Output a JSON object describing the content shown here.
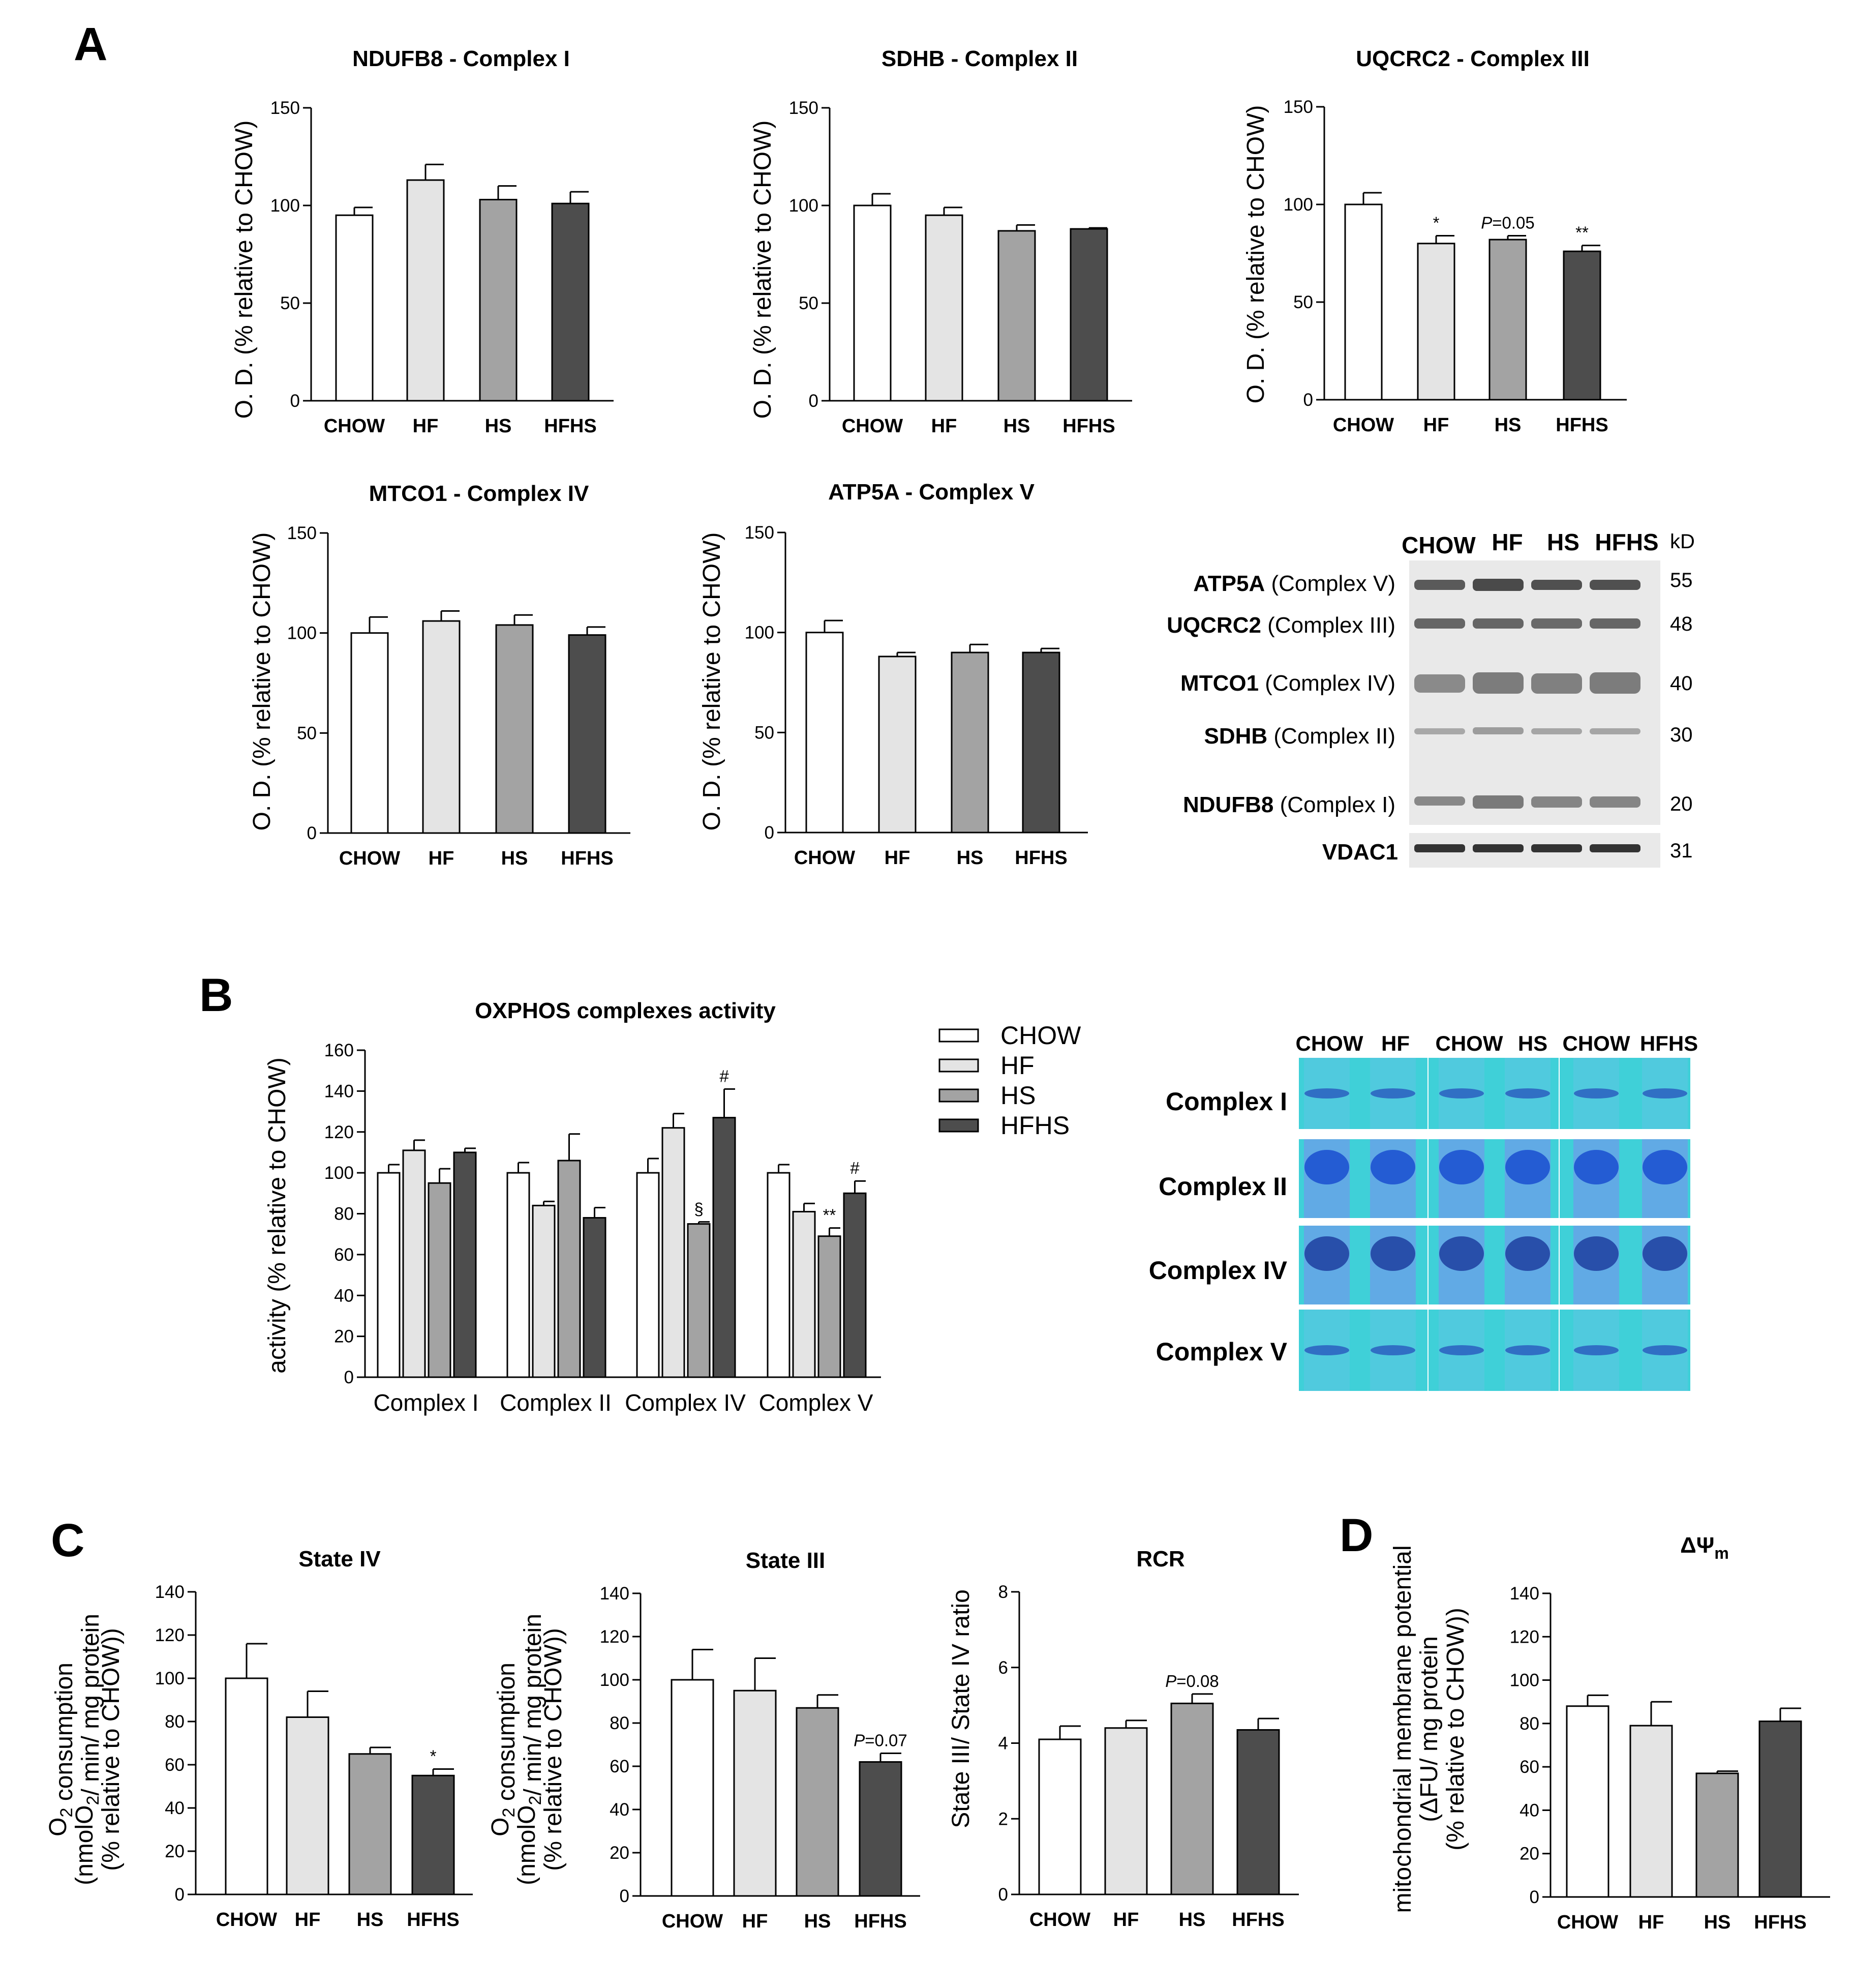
{
  "panels": {
    "A": "A",
    "B": "B",
    "C": "C",
    "D": "D"
  },
  "colors": {
    "CHOW": "#ffffff",
    "HF": "#e4e4e4",
    "HS": "#a3a3a3",
    "HFHS": "#4d4d4d"
  },
  "chart_data": [
    {
      "id": "ndufb8",
      "type": "bar",
      "title": "NDUFB8 - Complex I",
      "ylabel": "O. D. (% relative to CHOW)",
      "ylim": [
        0,
        150
      ],
      "yticks": [
        0,
        50,
        100,
        150
      ],
      "categories": [
        "CHOW",
        "HF",
        "HS",
        "HFHS"
      ],
      "values": [
        95,
        113,
        103,
        101
      ],
      "errors": [
        4,
        8,
        7,
        6
      ],
      "annotations": [
        "",
        "",
        "",
        ""
      ]
    },
    {
      "id": "sdhb",
      "type": "bar",
      "title": "SDHB - Complex II",
      "ylabel": "O. D. (% relative to CHOW)",
      "ylim": [
        0,
        150
      ],
      "yticks": [
        0,
        50,
        100,
        150
      ],
      "categories": [
        "CHOW",
        "HF",
        "HS",
        "HFHS"
      ],
      "values": [
        100,
        95,
        87,
        88
      ],
      "errors": [
        6,
        4,
        3,
        0.5
      ],
      "annotations": [
        "",
        "",
        "",
        ""
      ]
    },
    {
      "id": "uqcrc2",
      "type": "bar",
      "title": "UQCRC2 - Complex III",
      "ylabel": "O. D. (% relative to CHOW)",
      "ylim": [
        0,
        150
      ],
      "yticks": [
        0,
        50,
        100,
        150
      ],
      "categories": [
        "CHOW",
        "HF",
        "HS",
        "HFHS"
      ],
      "values": [
        100,
        80,
        82,
        76
      ],
      "errors": [
        6,
        4,
        2,
        3
      ],
      "annotations": [
        "",
        "*",
        "P=0.05",
        "**"
      ]
    },
    {
      "id": "mtco1",
      "type": "bar",
      "title": "MTCO1 - Complex IV",
      "ylabel": "O. D. (% relative to CHOW)",
      "ylim": [
        0,
        150
      ],
      "yticks": [
        0,
        50,
        100,
        150
      ],
      "categories": [
        "CHOW",
        "HF",
        "HS",
        "HFHS"
      ],
      "values": [
        100,
        106,
        104,
        99
      ],
      "errors": [
        8,
        5,
        5,
        4
      ],
      "annotations": [
        "",
        "",
        "",
        ""
      ]
    },
    {
      "id": "atp5a",
      "type": "bar",
      "title": "ATP5A - Complex V",
      "ylabel": "O. D. (% relative to CHOW)",
      "ylim": [
        0,
        150
      ],
      "yticks": [
        0,
        50,
        100,
        150
      ],
      "categories": [
        "CHOW",
        "HF",
        "HS",
        "HFHS"
      ],
      "values": [
        100,
        88,
        90,
        90
      ],
      "errors": [
        6,
        2,
        4,
        2
      ],
      "annotations": [
        "",
        "",
        "",
        ""
      ]
    },
    {
      "id": "oxphos",
      "type": "bar",
      "title": "OXPHOS complexes activity",
      "ylabel": "activity (% relative to CHOW)",
      "ylim": [
        0,
        160
      ],
      "yticks": [
        0,
        20,
        40,
        60,
        80,
        100,
        120,
        140,
        160
      ],
      "categories": [
        "Complex I",
        "Complex II",
        "Complex IV",
        "Complex V"
      ],
      "series": [
        {
          "name": "CHOW",
          "values": [
            100,
            100,
            100,
            100
          ],
          "errors": [
            4,
            5,
            7,
            4
          ],
          "annotations": [
            "",
            "",
            "",
            ""
          ]
        },
        {
          "name": "HF",
          "values": [
            111,
            84,
            122,
            81
          ],
          "errors": [
            5,
            2,
            7,
            4
          ],
          "annotations": [
            "",
            "",
            "",
            ""
          ]
        },
        {
          "name": "HS",
          "values": [
            95,
            106,
            75,
            69
          ],
          "errors": [
            7,
            13,
            1,
            4
          ],
          "annotations": [
            "",
            "",
            "§",
            "**"
          ]
        },
        {
          "name": "HFHS",
          "values": [
            110,
            78,
            127,
            90
          ],
          "errors": [
            2,
            5,
            14,
            6
          ],
          "annotations": [
            "",
            "",
            "#",
            "#"
          ]
        }
      ]
    },
    {
      "id": "state4",
      "type": "bar",
      "title": "State IV",
      "ylabel_lines": [
        "O2 consumption",
        "(nmolO2/ min/ mg protein",
        "(% relative to CHOW))"
      ],
      "ylim": [
        0,
        140
      ],
      "yticks": [
        0,
        20,
        40,
        60,
        80,
        100,
        120,
        140
      ],
      "categories": [
        "CHOW",
        "HF",
        "HS",
        "HFHS"
      ],
      "values": [
        100,
        82,
        65,
        55
      ],
      "errors": [
        16,
        12,
        3,
        3
      ],
      "annotations": [
        "",
        "",
        "",
        "*"
      ]
    },
    {
      "id": "state3",
      "type": "bar",
      "title": "State III",
      "ylabel_lines": [
        "O2 consumption",
        "(nmolO2/ min/ mg protein",
        "(% relative to CHOW))"
      ],
      "ylim": [
        0,
        140
      ],
      "yticks": [
        0,
        20,
        40,
        60,
        80,
        100,
        120,
        140
      ],
      "categories": [
        "CHOW",
        "HF",
        "HS",
        "HFHS"
      ],
      "values": [
        100,
        95,
        87,
        62
      ],
      "errors": [
        14,
        15,
        6,
        4
      ],
      "annotations": [
        "",
        "",
        "",
        "P=0.07"
      ]
    },
    {
      "id": "rcr",
      "type": "bar",
      "title": "RCR",
      "ylabel": "State III/ State IV ratio",
      "ylim": [
        0,
        8
      ],
      "yticks": [
        0,
        2,
        4,
        6,
        8
      ],
      "categories": [
        "CHOW",
        "HF",
        "HS",
        "HFHS"
      ],
      "values": [
        4.1,
        4.4,
        5.05,
        4.35
      ],
      "errors": [
        0.35,
        0.2,
        0.25,
        0.3
      ],
      "annotations": [
        "",
        "",
        "P=0.08",
        ""
      ]
    },
    {
      "id": "dpsi",
      "type": "bar",
      "title": "ΔΨm",
      "ylabel_lines": [
        "mitochondrial membrane potential",
        "(ΔFU/ mg protein",
        "(% relative to CHOW))"
      ],
      "ylim": [
        0,
        140
      ],
      "yticks": [
        0,
        20,
        40,
        60,
        80,
        100,
        120,
        140
      ],
      "categories": [
        "CHOW",
        "HF",
        "HS",
        "HFHS"
      ],
      "values": [
        88,
        79,
        57,
        81
      ],
      "errors": [
        5,
        11,
        1,
        6
      ],
      "annotations": [
        "",
        "",
        "",
        ""
      ]
    }
  ],
  "legend": [
    "CHOW",
    "HF",
    "HS",
    "HFHS"
  ],
  "western_blot": {
    "columns": [
      "CHOW",
      "HF",
      "HS",
      "HFHS"
    ],
    "kd_header": "kD",
    "rows": [
      {
        "bold": "ATP5A",
        "rest": " (Complex V)",
        "kd": "55"
      },
      {
        "bold": "UQCRC2",
        "rest": " (Complex III)",
        "kd": "48"
      },
      {
        "bold": "MTCO1",
        "rest": " (Complex IV)",
        "kd": "40"
      },
      {
        "bold": "SDHB",
        "rest": " (Complex II)",
        "kd": "30"
      },
      {
        "bold": "NDUFB8",
        "rest": " (Complex I)",
        "kd": "20"
      },
      {
        "bold": "VDAC1",
        "rest": "",
        "kd": "31"
      }
    ]
  },
  "gel": {
    "column_groups": [
      [
        "CHOW",
        "HF"
      ],
      [
        "CHOW",
        "HS"
      ],
      [
        "CHOW",
        "HFHS"
      ]
    ],
    "rows": [
      "Complex I",
      "Complex II",
      "Complex IV",
      "Complex V"
    ]
  }
}
